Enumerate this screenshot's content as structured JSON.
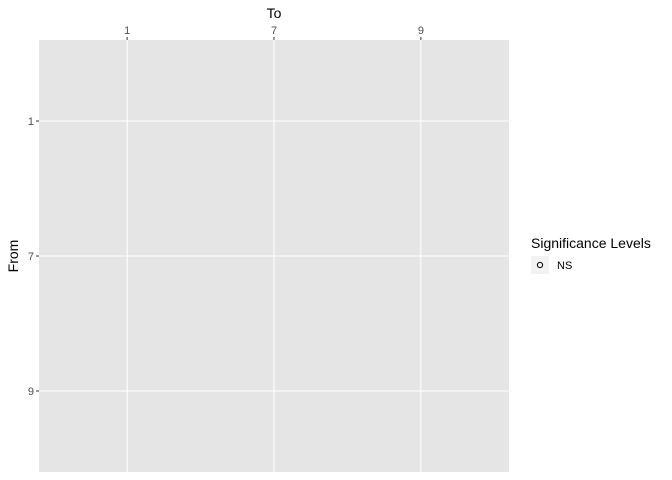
{
  "chart_data": {
    "type": "scatter",
    "xlabel": "To",
    "ylabel": "From",
    "x_categories": [
      "1",
      "7",
      "9"
    ],
    "y_categories": [
      "1",
      "7",
      "9"
    ],
    "x_axis_position": "top",
    "points": [],
    "grid": true,
    "legend": {
      "title": "Significance Levels",
      "placement": "right",
      "entries": [
        {
          "label": "NS",
          "shape": "open-circle"
        }
      ]
    },
    "colors": {
      "panel": "#e5e5e5",
      "grid": "#ffffff",
      "tick": "#333333",
      "point_stroke": "#000000"
    }
  }
}
